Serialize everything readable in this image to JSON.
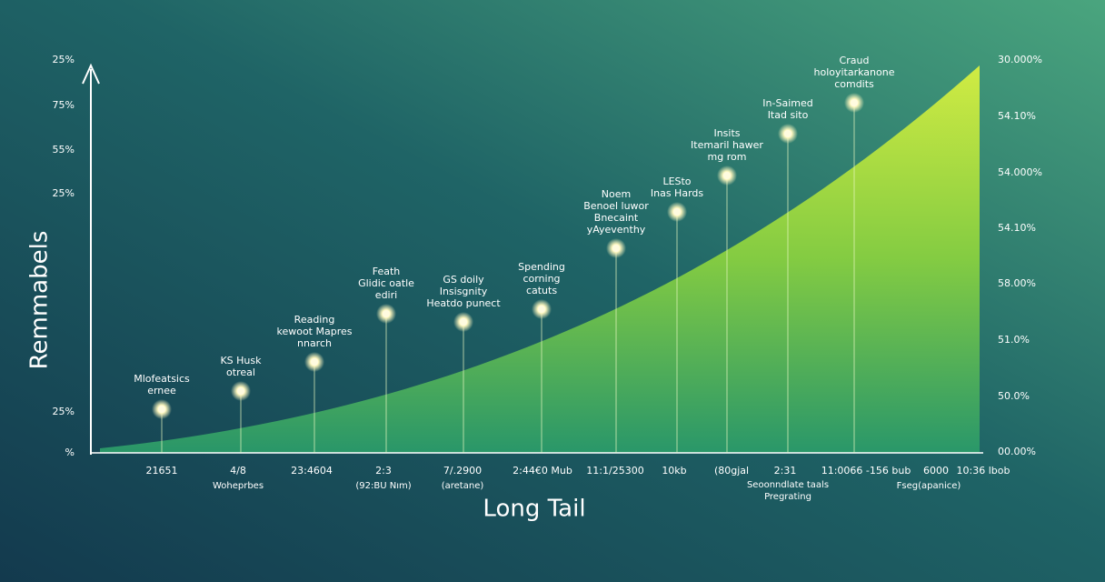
{
  "y_title": "Remmabels",
  "x_title": "Long Tail",
  "left_labels": [
    "25%",
    "75%",
    "55%",
    "25%",
    "25%",
    "%"
  ],
  "right_labels": [
    "30.000%",
    "54.10%",
    "54.000%",
    "54.10%",
    "58.00%",
    "51.0%",
    "50.0%",
    "00.00%"
  ],
  "x_labels": [
    "21651",
    "4/8",
    "23:4604",
    "2:3",
    "7/.2900",
    "2:44€0 Mub",
    "11:1/25300",
    "10kb",
    "(80gjal",
    "2:31",
    "11:0066 -156 bub",
    "6000",
    "10:36 lbob"
  ],
  "x_sublabels": [
    "Woheprbes",
    "(92:BU Nım)",
    "(aretane)",
    "Seoonndlate taals",
    "Pregrating",
    "Fseg(apanice)"
  ],
  "callouts": [
    {
      "lines": [
        "Mlofeatsics",
        "ernee"
      ]
    },
    {
      "lines": [
        "KS Husk",
        "otreal"
      ]
    },
    {
      "lines": [
        "Reading",
        "kewoot Mapres",
        "nnarch"
      ]
    },
    {
      "lines": [
        "Feath",
        "Glidic oatle",
        "ediri"
      ]
    },
    {
      "lines": [
        "GS doily",
        "Insisgnity",
        "Heatdo punect"
      ]
    },
    {
      "lines": [
        "Spending",
        "corning",
        "catuts"
      ]
    },
    {
      "lines": [
        "Noem",
        "Benoel luwor",
        "Bnecaint",
        "yAyeventhy"
      ]
    },
    {
      "lines": [
        "LESto",
        "Inas Hards"
      ]
    },
    {
      "lines": [
        "Insits",
        "Itemaril hawer",
        "mg rom"
      ]
    },
    {
      "lines": [
        "In-Saimed",
        "Itad sito"
      ]
    },
    {
      "lines": [
        "Craud",
        "holoyitarkanone",
        "comdits"
      ]
    }
  ]
}
